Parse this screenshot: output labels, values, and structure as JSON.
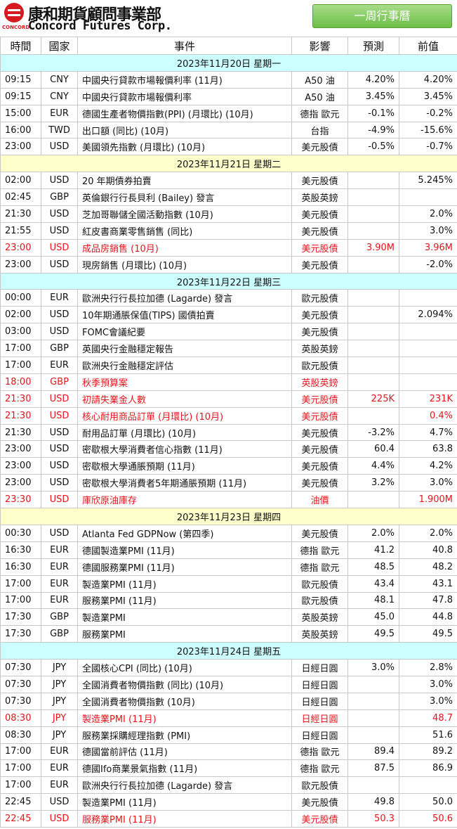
{
  "header": {
    "logo_text": "CONCORD",
    "company_zh": "康和期貨顧問事業部",
    "company_en": "Concord Futures Corp.",
    "button": "一周行事曆"
  },
  "table": {
    "columns": [
      "時間",
      "國家",
      "事件",
      "影響",
      "預測",
      "前值"
    ],
    "days": [
      {
        "date": "2023年11月20日 星期一",
        "rows": [
          {
            "cells": [
              "09:15",
              "CNY",
              "中國央行貸款市場報價利率 (11月)",
              "A50 油",
              "4.20%",
              "4.20%"
            ]
          },
          {
            "cells": [
              "09:15",
              "CNY",
              "中國央行貸款市場報價利率",
              "A50 油",
              "3.45%",
              "3.45%"
            ]
          },
          {
            "cells": [
              "15:00",
              "EUR",
              "德國生產者物價指數(PPI) (月環比) (10月)",
              "德指 歐元",
              "-0.1%",
              "-0.2%"
            ]
          },
          {
            "cells": [
              "16:00",
              "TWD",
              "出口額 (同比) (10月)",
              "台指",
              "-4.9%",
              "-15.6%"
            ]
          },
          {
            "cells": [
              "23:00",
              "USD",
              "美國領先指數 (月環比) (10月)",
              "美元股債",
              "-0.5%",
              "-0.7%"
            ]
          }
        ]
      },
      {
        "date": "2023年11月21日 星期二",
        "rows": [
          {
            "cells": [
              "02:00",
              "USD",
              "20 年期債券拍賣",
              "美元股債",
              null,
              "5.245%"
            ]
          },
          {
            "cells": [
              "02:45",
              "GBP",
              "英倫銀行行長貝利 (Bailey) 發言",
              "英股英鎊",
              null,
              null
            ]
          },
          {
            "cells": [
              "21:30",
              "USD",
              "芝加哥聯儲全國活動指數 (10月)",
              "美元股債",
              null,
              "2.0%"
            ]
          },
          {
            "cells": [
              "21:55",
              "USD",
              "紅皮書商業零售銷售 (同比)",
              "美元股債",
              null,
              "3.0%"
            ]
          },
          {
            "cells": [
              "23:00",
              "USD",
              "成品房銷售 (10月)",
              "美元股債",
              "3.90M",
              "3.96M"
            ],
            "highlight": true
          },
          {
            "cells": [
              "23:00",
              "USD",
              "現房銷售 (月環比) (10月)",
              "美元股債",
              null,
              "-2.0%"
            ]
          }
        ]
      },
      {
        "date": "2023年11月22日 星期三",
        "rows": [
          {
            "cells": [
              "00:00",
              "EUR",
              "歐洲央行行長拉加德 (Lagarde) 發言",
              "歐元股債",
              null,
              null
            ]
          },
          {
            "cells": [
              "02:00",
              "USD",
              "10年期通脹保值(TIPS) 國債拍賣",
              "美元股債",
              null,
              "2.094%"
            ]
          },
          {
            "cells": [
              "03:00",
              "USD",
              "FOMC會議紀要",
              "美元股債",
              null,
              null
            ]
          },
          {
            "cells": [
              "17:00",
              "GBP",
              "英國央行金融穩定報告",
              "英股英鎊",
              null,
              null
            ]
          },
          {
            "cells": [
              "17:00",
              "EUR",
              "歐洲央行金融穩定評估",
              "歐元股債",
              null,
              null
            ]
          },
          {
            "cells": [
              "18:00",
              "GBP",
              "秋季預算案",
              "英股英鎊",
              null,
              null
            ],
            "highlight": true
          },
          {
            "cells": [
              "21:30",
              "USD",
              "初請失業金人數",
              "美元股債",
              "225K",
              "231K"
            ],
            "highlight": true
          },
          {
            "cells": [
              "21:30",
              "USD",
              "核心耐用商品訂單 (月環比) (10月)",
              "美元股債",
              null,
              "0.4%"
            ],
            "highlight": true
          },
          {
            "cells": [
              "21:30",
              "USD",
              "耐用品訂單 (月環比) (10月)",
              "美元股債",
              "-3.2%",
              "4.7%"
            ]
          },
          {
            "cells": [
              "23:00",
              "USD",
              "密歇根大學消費者信心指數 (11月)",
              "美元股債",
              "60.4",
              "63.8"
            ]
          },
          {
            "cells": [
              "23:00",
              "USD",
              "密歇根大學通脹預期 (11月)",
              "美元股債",
              "4.4%",
              "4.2%"
            ]
          },
          {
            "cells": [
              "23:00",
              "USD",
              "密歇根大學消費者5年期通脹預期 (11月)",
              "美元股債",
              "3.2%",
              "3.0%"
            ]
          },
          {
            "cells": [
              "23:30",
              "USD",
              "庫欣原油庫存",
              "油價",
              null,
              "1.900M"
            ],
            "highlight": true
          }
        ]
      },
      {
        "date": "2023年11月23日 星期四",
        "rows": [
          {
            "cells": [
              "00:30",
              "USD",
              "Atlanta Fed GDPNow (第四季)",
              "美元股債",
              "2.0%",
              "2.0%"
            ]
          },
          {
            "cells": [
              "16:30",
              "EUR",
              "德國製造業PMI (11月)",
              "德指 歐元",
              "41.2",
              "40.8"
            ]
          },
          {
            "cells": [
              "16:30",
              "EUR",
              "德國服務業PMI (11月)",
              "德指 歐元",
              "48.5",
              "48.2"
            ]
          },
          {
            "cells": [
              "17:00",
              "EUR",
              "製造業PMI (11月)",
              "歐元股債",
              "43.4",
              "43.1"
            ]
          },
          {
            "cells": [
              "17:00",
              "EUR",
              "服務業PMI (11月)",
              "歐元股債",
              "48.1",
              "47.8"
            ]
          },
          {
            "cells": [
              "17:30",
              "GBP",
              "製造業PMI",
              "英股英鎊",
              "45.0",
              "44.8"
            ]
          },
          {
            "cells": [
              "17:30",
              "GBP",
              "服務業PMI",
              "英股英鎊",
              "49.5",
              "49.5"
            ]
          }
        ]
      },
      {
        "date": "2023年11月24日 星期五",
        "rows": [
          {
            "cells": [
              "07:30",
              "JPY",
              "全國核心CPI (同比) (10月)",
              "日經日圓",
              "3.0%",
              "2.8%"
            ]
          },
          {
            "cells": [
              "07:30",
              "JPY",
              "全國消費者物價指數 (同比) (10月)",
              "日經日圓",
              null,
              "3.0%"
            ]
          },
          {
            "cells": [
              "07:30",
              "JPY",
              "全國消費者物價指數 (10月)",
              "日經日圓",
              null,
              "3.0%"
            ]
          },
          {
            "cells": [
              "08:30",
              "JPY",
              "製造業PMI (11月)",
              "日經日圓",
              null,
              "48.7"
            ],
            "highlight": true
          },
          {
            "cells": [
              "08:30",
              "JPY",
              "服務業採購經理指數 (PMI)",
              "日經日圓",
              null,
              "51.6"
            ]
          },
          {
            "cells": [
              "17:00",
              "EUR",
              "德國當前評估 (11月)",
              "德指 歐元",
              "89.4",
              "89.2"
            ]
          },
          {
            "cells": [
              "17:00",
              "EUR",
              "德國Ifo商業景氣指數 (11月)",
              "德指 歐元",
              "87.5",
              "86.9"
            ]
          },
          {
            "cells": [
              "17:00",
              "EUR",
              "歐洲央行行長拉加德 (Lagarde) 發言",
              "歐元股債",
              null,
              null
            ]
          },
          {
            "cells": [
              "22:45",
              "USD",
              "製造業PMI (11月)",
              "美元股債",
              "49.8",
              "50.0"
            ]
          },
          {
            "cells": [
              "22:45",
              "USD",
              "服務業PMI (11月)",
              "美元股債",
              "50.3",
              "50.6"
            ],
            "highlight": true
          }
        ]
      }
    ]
  }
}
